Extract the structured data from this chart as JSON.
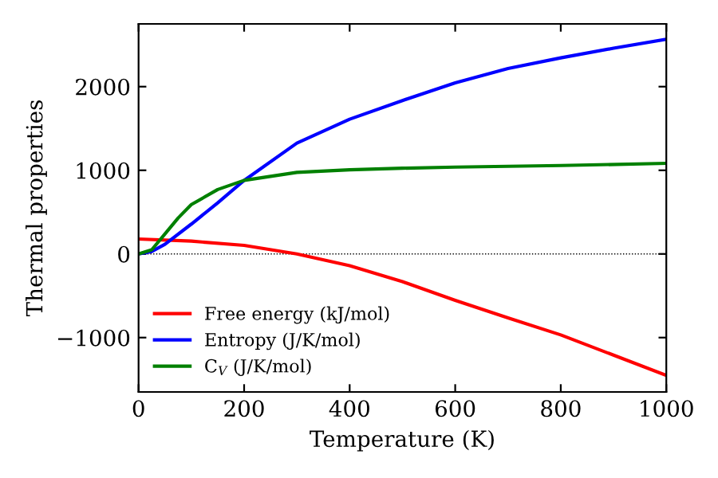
{
  "chart_data": {
    "type": "line",
    "xlabel": "Temperature (K)",
    "ylabel": "Thermal properties",
    "xlim": [
      0,
      1000
    ],
    "xticks": [
      0,
      200,
      400,
      600,
      800,
      1000
    ],
    "ylim": [
      -1650,
      2750
    ],
    "yticks": [
      {
        "value": -1000,
        "label": "−1000"
      },
      0,
      1000,
      2000
    ],
    "legend": "bottom left",
    "grid": false,
    "ref_lines": [
      {
        "axis": "y",
        "value": 0,
        "color": "#000000",
        "line_style": "dotted"
      }
    ],
    "series": [
      {
        "name": "Free energy (kJ/mol)",
        "color": "#ff0000",
        "x": [
          0,
          100,
          200,
          300,
          400,
          500,
          600,
          700,
          800,
          900,
          1000
        ],
        "values": [
          178,
          153,
          102,
          0,
          -140,
          -331,
          -554,
          -764,
          -968,
          -1210,
          -1452
        ]
      },
      {
        "name": "Entropy (J/K/mol)",
        "color": "#0000ff",
        "x": [
          0,
          25,
          50,
          100,
          150,
          200,
          300,
          400,
          500,
          600,
          700,
          800,
          900,
          1000
        ],
        "values": [
          0,
          30,
          115,
          357,
          611,
          879,
          1325,
          1611,
          1834,
          2045,
          2217,
          2344,
          2459,
          2567
        ]
      },
      {
        "name": "C$_{V}$ (J/K/mol)",
        "color": "#008000",
        "x": [
          0,
          25,
          50,
          75,
          100,
          150,
          200,
          300,
          400,
          500,
          600,
          800,
          1000
        ],
        "values": [
          0,
          50,
          240,
          430,
          590,
          770,
          880,
          975,
          1006,
          1025,
          1038,
          1057,
          1083
        ]
      }
    ]
  }
}
